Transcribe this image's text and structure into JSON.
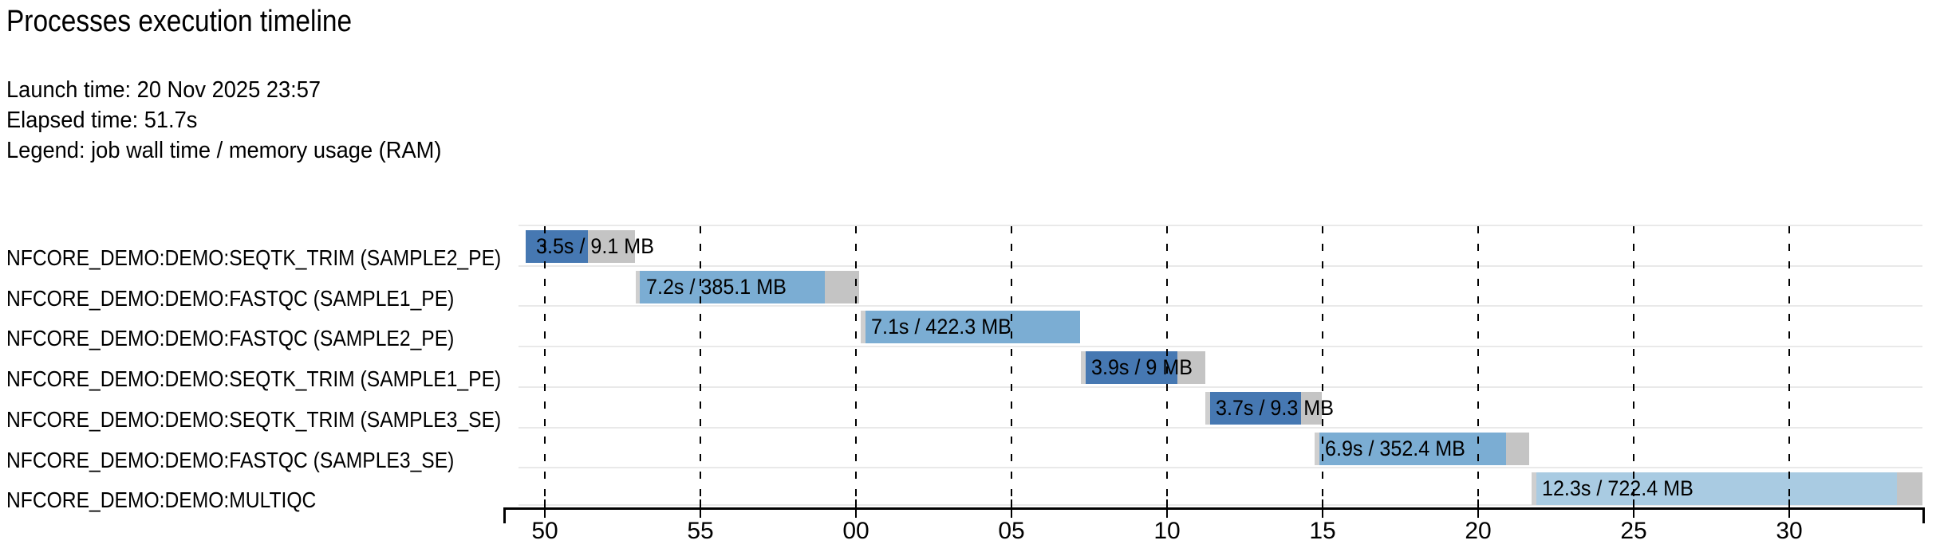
{
  "header": {
    "title": "Processes execution timeline",
    "launch_time": "Launch time: 20 Nov 2025 23:57",
    "elapsed_time": "Elapsed time: 51.7s",
    "legend": "Legend: job wall time / memory usage (RAM)"
  },
  "colors": {
    "seqtk_trim": "#4678b2",
    "fastqc": "#7badd3",
    "multiqc": "#a9cbe2",
    "overhead_gray": "#c4c4c4",
    "lead_gray": "#cfcfcf",
    "row_separator": "#e9e9e9",
    "axis_black": "#000000"
  },
  "chart_data": {
    "type": "gantt",
    "title": "Processes execution timeline",
    "launch_time": "20 Nov 2025 23:57",
    "elapsed_time_s": 51.7,
    "legend": "job wall time / memory usage (RAM)",
    "time_unit": "seconds",
    "axis": {
      "tick_labels": [
        "50",
        "55",
        "00",
        "05",
        "10",
        "15",
        "20",
        "25",
        "30"
      ],
      "tick_interval_s": 5,
      "range_s": [
        -1.33,
        44.28
      ],
      "grid": "dashed-vertical"
    },
    "rows": [
      {
        "process": "NFCORE_DEMO:DEMO:SEQTK_TRIM (SAMPLE2_PE)",
        "label": "3.5s / 9.1 MB",
        "wall_time_s": 3.5,
        "memory_mb": 9.1,
        "color": "seqtk_trim",
        "t_start": -0.62,
        "t_run_start": -0.62,
        "t_run_end": 1.38,
        "t_end": 2.9
      },
      {
        "process": "NFCORE_DEMO:DEMO:FASTQC (SAMPLE1_PE)",
        "label": "7.2s / 385.1 MB",
        "wall_time_s": 7.2,
        "memory_mb": 385.1,
        "color": "fastqc",
        "t_start": 2.92,
        "t_run_start": 3.05,
        "t_run_end": 9.0,
        "t_end": 10.1
      },
      {
        "process": "NFCORE_DEMO:DEMO:FASTQC (SAMPLE2_PE)",
        "label": "7.1s / 422.3 MB",
        "wall_time_s": 7.1,
        "memory_mb": 422.3,
        "color": "fastqc",
        "t_start": 10.15,
        "t_run_start": 10.31,
        "t_run_end": 17.21,
        "t_end": 17.21
      },
      {
        "process": "NFCORE_DEMO:DEMO:SEQTK_TRIM (SAMPLE1_PE)",
        "label": "3.9s / 9 MB",
        "wall_time_s": 3.9,
        "memory_mb": 9,
        "color": "seqtk_trim",
        "t_start": 17.23,
        "t_run_start": 17.38,
        "t_run_end": 20.33,
        "t_end": 21.23
      },
      {
        "process": "NFCORE_DEMO:DEMO:SEQTK_TRIM (SAMPLE3_SE)",
        "label": "3.7s / 9.3 MB",
        "wall_time_s": 3.7,
        "memory_mb": 9.3,
        "color": "seqtk_trim",
        "t_start": 21.23,
        "t_run_start": 21.38,
        "t_run_end": 24.31,
        "t_end": 24.97
      },
      {
        "process": "NFCORE_DEMO:DEMO:FASTQC (SAMPLE3_SE)",
        "label": "6.9s / 352.4 MB",
        "wall_time_s": 6.9,
        "memory_mb": 352.4,
        "color": "fastqc",
        "t_start": 24.74,
        "t_run_start": 24.9,
        "t_run_end": 30.9,
        "t_end": 31.64
      },
      {
        "process": "NFCORE_DEMO:DEMO:MULTIQC",
        "label": "12.3s / 722.4 MB",
        "wall_time_s": 12.3,
        "memory_mb": 722.4,
        "color": "multiqc",
        "t_start": 31.72,
        "t_run_start": 31.87,
        "t_run_end": 43.46,
        "t_end": 44.28
      }
    ]
  }
}
